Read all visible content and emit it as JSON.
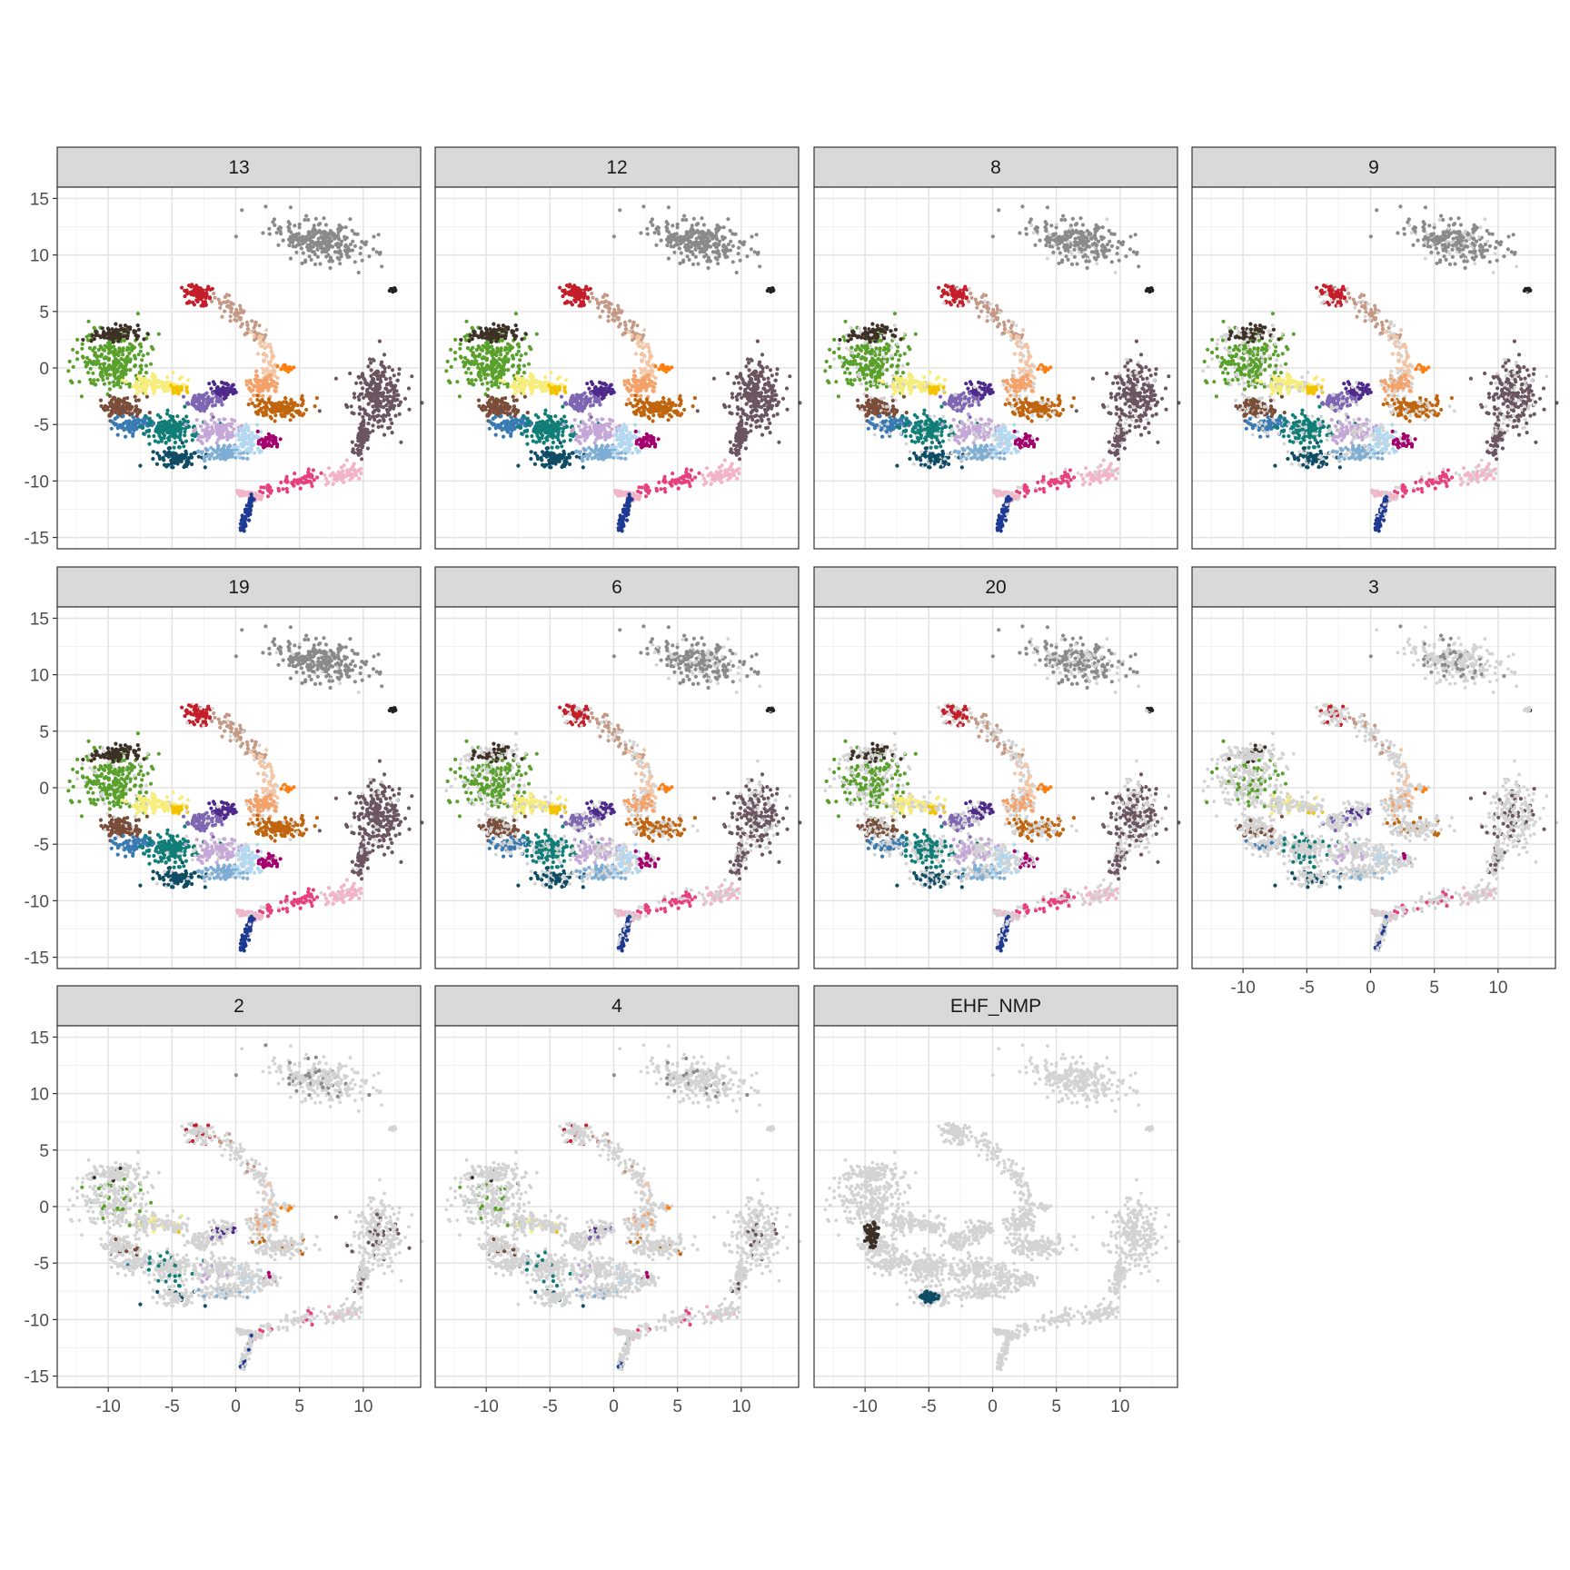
{
  "chart_data": {
    "type": "scatter",
    "layout": "faceted",
    "facet_labels": [
      "13",
      "12",
      "8",
      "9",
      "19",
      "6",
      "20",
      "3",
      "2",
      "4",
      "EHF_NMP"
    ],
    "xlabel": "",
    "ylabel": "",
    "xlim": [
      -14,
      14.5
    ],
    "ylim": [
      -16,
      16
    ],
    "x_ticks": [
      -10,
      -5,
      0,
      5,
      10
    ],
    "y_ticks": [
      15,
      10,
      5,
      0,
      -5,
      -10,
      -15
    ],
    "x_tick_labels": [
      "-10",
      "-5",
      "0",
      "5",
      "10"
    ],
    "y_tick_labels": [
      "15",
      "10",
      "5",
      "0",
      "-5",
      "-10",
      "-15"
    ],
    "grid": true,
    "background_color": "#d3d3d3",
    "clusters": [
      {
        "color": "#8a8a8a",
        "shape": "ellipse",
        "center": [
          6.5,
          11.3
        ],
        "spread": [
          3.4,
          1.6
        ],
        "rotation": -15
      },
      {
        "color": "#6b5560",
        "shape": "ellipse",
        "center": [
          11.0,
          -2.5
        ],
        "spread": [
          2.0,
          2.8
        ],
        "rotation": 0
      },
      {
        "color": "#6b5560",
        "shape": "segment",
        "from": [
          10.2,
          -5.0
        ],
        "to": [
          9.5,
          -7.5
        ],
        "width": 0.6
      },
      {
        "color": "#c41e2a",
        "shape": "ellipse",
        "center": [
          -3.0,
          6.5
        ],
        "spread": [
          1.0,
          0.9
        ],
        "rotation": 0
      },
      {
        "color": "#c49a86",
        "shape": "segment",
        "from": [
          -1.5,
          6.5
        ],
        "to": [
          2.0,
          2.5
        ],
        "width": 1.0
      },
      {
        "color": "#f4c6a6",
        "shape": "segment",
        "from": [
          2.0,
          2.5
        ],
        "to": [
          3.0,
          -1.5
        ],
        "width": 0.9
      },
      {
        "color": "#ff7f0e",
        "shape": "ellipse",
        "center": [
          4.0,
          0.0
        ],
        "spread": [
          0.4,
          0.3
        ],
        "rotation": 0
      },
      {
        "color": "#f4a16a",
        "shape": "ellipse",
        "center": [
          2.0,
          -1.5
        ],
        "spread": [
          1.2,
          0.8
        ],
        "rotation": 0
      },
      {
        "color": "#5aa02c",
        "shape": "ellipse",
        "center": [
          -9.5,
          0.5
        ],
        "spread": [
          2.5,
          2.3
        ],
        "rotation": 0
      },
      {
        "color": "#3d3026",
        "shape": "ellipse",
        "center": [
          -9.5,
          3.0
        ],
        "spread": [
          1.5,
          0.8
        ],
        "rotation": 0
      },
      {
        "color": "#f7ed7a",
        "shape": "ellipse",
        "center": [
          -6.0,
          -1.5
        ],
        "spread": [
          2.0,
          0.7
        ],
        "rotation": 0
      },
      {
        "color": "#f5c200",
        "shape": "ellipse",
        "center": [
          -4.5,
          -2.0
        ],
        "spread": [
          0.5,
          0.4
        ],
        "rotation": 0
      },
      {
        "color": "#7a4d3b",
        "shape": "ellipse",
        "center": [
          -9.0,
          -3.5
        ],
        "spread": [
          1.5,
          1.0
        ],
        "rotation": 0
      },
      {
        "color": "#3a7ab3",
        "shape": "ellipse",
        "center": [
          -8.0,
          -5.0
        ],
        "spread": [
          1.5,
          0.7
        ],
        "rotation": 0
      },
      {
        "color": "#117d77",
        "shape": "ellipse",
        "center": [
          -5.0,
          -5.5
        ],
        "spread": [
          1.8,
          1.3
        ],
        "rotation": 0
      },
      {
        "color": "#0e4d64",
        "shape": "ellipse",
        "center": [
          -4.5,
          -8.0
        ],
        "spread": [
          1.6,
          0.7
        ],
        "rotation": 0
      },
      {
        "color": "#4d2a8a",
        "shape": "ellipse",
        "center": [
          -1.0,
          -2.0
        ],
        "spread": [
          1.0,
          0.6
        ],
        "rotation": 0
      },
      {
        "color": "#7f66b3",
        "shape": "ellipse",
        "center": [
          -2.5,
          -3.0
        ],
        "spread": [
          1.2,
          0.8
        ],
        "rotation": 0
      },
      {
        "color": "#c5a8d8",
        "shape": "ellipse",
        "center": [
          -1.5,
          -5.5
        ],
        "spread": [
          1.5,
          1.0
        ],
        "rotation": 0
      },
      {
        "color": "#7faed4",
        "shape": "ellipse",
        "center": [
          -1.0,
          -7.5
        ],
        "spread": [
          1.5,
          0.7
        ],
        "rotation": 0
      },
      {
        "color": "#b3d8f0",
        "shape": "ellipse",
        "center": [
          1.0,
          -6.5
        ],
        "spread": [
          1.0,
          1.0
        ],
        "rotation": 0
      },
      {
        "color": "#c0650f",
        "shape": "ellipse",
        "center": [
          3.5,
          -3.5
        ],
        "spread": [
          2.3,
          0.8
        ],
        "rotation": 0
      },
      {
        "color": "#a3006e",
        "shape": "ellipse",
        "center": [
          2.5,
          -6.5
        ],
        "spread": [
          0.6,
          0.5
        ],
        "rotation": 0
      },
      {
        "color": "#e6407f",
        "shape": "segment",
        "from": [
          2.0,
          -11.0
        ],
        "to": [
          6.5,
          -9.5
        ],
        "width": 0.8
      },
      {
        "color": "#f3b4c8",
        "shape": "segment",
        "from": [
          7.5,
          -10.0
        ],
        "to": [
          9.5,
          -9.0
        ],
        "width": 0.8
      },
      {
        "color": "#f3b4c8",
        "shape": "segment",
        "from": [
          0.2,
          -11.0
        ],
        "to": [
          2.0,
          -11.5
        ],
        "width": 0.3
      },
      {
        "color": "#1f3a93",
        "shape": "segment",
        "from": [
          0.5,
          -14.5
        ],
        "to": [
          1.2,
          -11.5
        ],
        "width": 0.35
      },
      {
        "color": "#222222",
        "shape": "ellipse",
        "center": [
          12.3,
          6.9
        ],
        "spread": [
          0.2,
          0.15
        ],
        "rotation": 0
      }
    ],
    "facet_density": [
      1.0,
      1.0,
      0.85,
      0.75,
      0.9,
      0.65,
      0.55,
      0.2,
      0.12,
      0.08,
      0.0
    ],
    "facet_special": {
      "EHF_NMP": [
        {
          "color": "#0e4d64",
          "center": [
            -5.0,
            -8.0
          ],
          "spread": [
            0.6,
            0.4
          ],
          "density": 1.0
        },
        {
          "color": "#3d3026",
          "center": [
            -9.5,
            -2.5
          ],
          "spread": [
            0.5,
            1.0
          ],
          "density": 0.8
        }
      ]
    }
  }
}
